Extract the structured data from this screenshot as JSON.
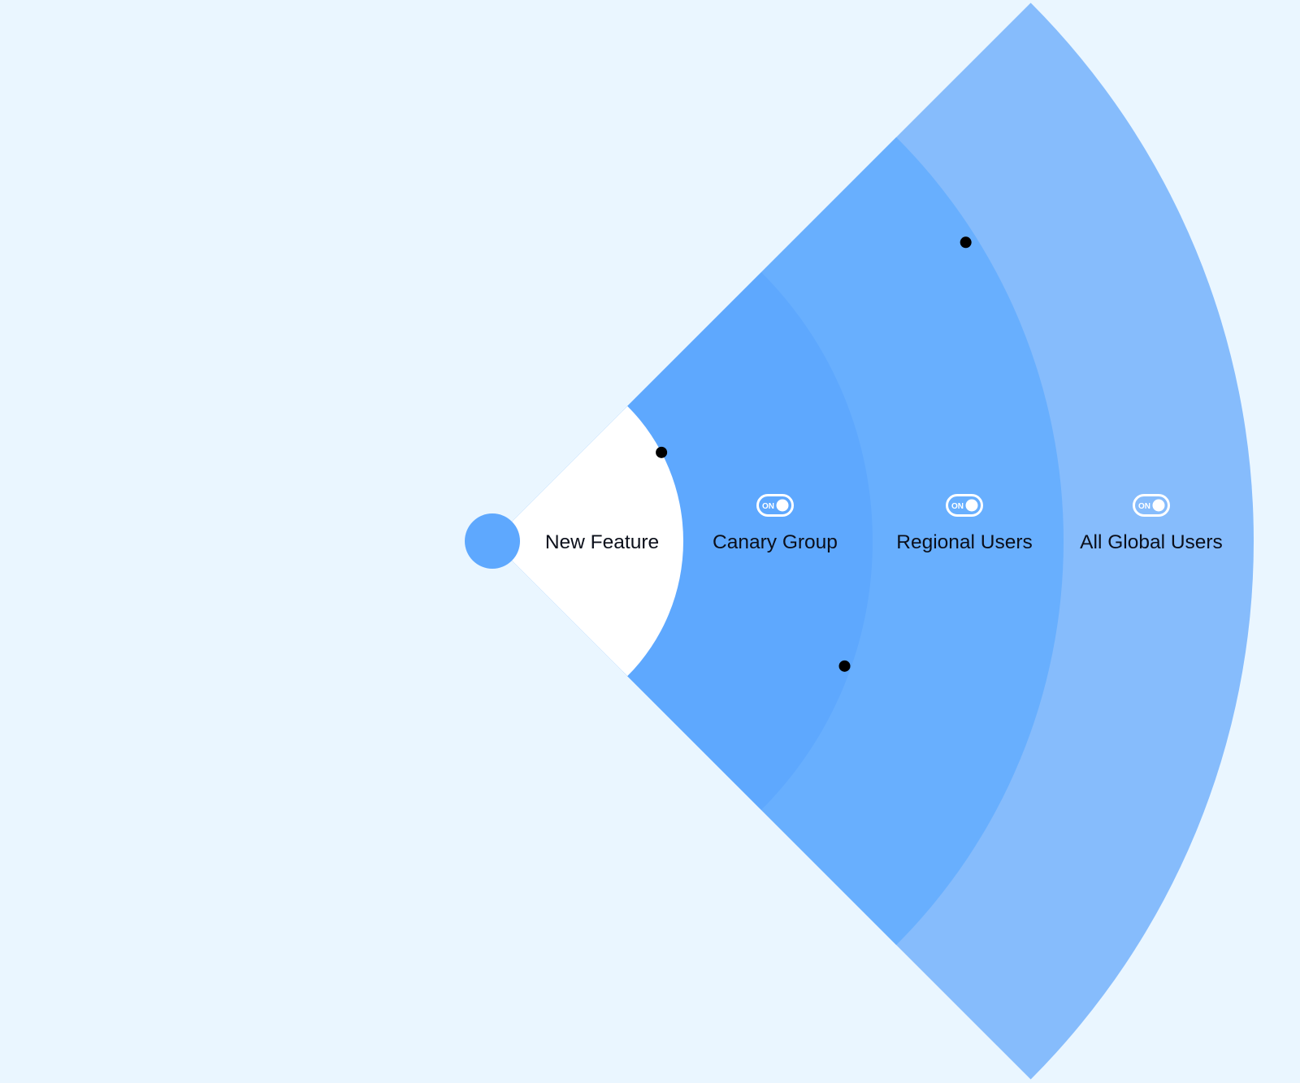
{
  "diagram": {
    "stages": [
      {
        "label": "New Feature",
        "color": "#ffffff",
        "toggle": null
      },
      {
        "label": "Canary Group",
        "color": "#5ea8fe",
        "toggle": "ON"
      },
      {
        "label": "Regional Users",
        "color": "#68affe",
        "toggle": "ON"
      },
      {
        "label": "All Global Users",
        "color": "#86bcfc",
        "toggle": "ON"
      }
    ],
    "origin_color": "#5ea8fe",
    "background": "#eaf6ff",
    "marker_color": "#000000"
  }
}
